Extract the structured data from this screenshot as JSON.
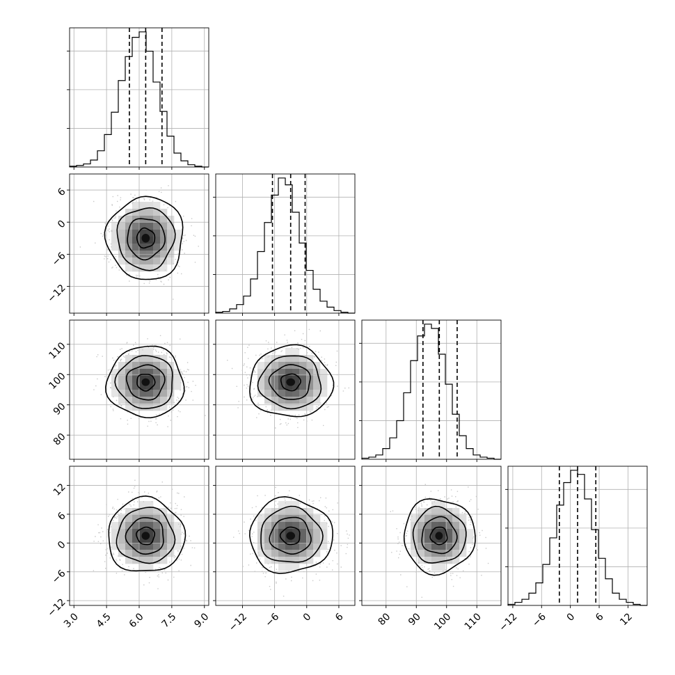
{
  "chart_data": {
    "type": "corner",
    "parameters": [
      {
        "mean": 6.3,
        "std": 0.75,
        "range": [
          2.8,
          9.2
        ],
        "quantiles": [
          5.55,
          6.3,
          7.05
        ],
        "ticks": [
          3.0,
          4.5,
          6.0,
          7.5,
          9.0
        ],
        "tick_labels": [
          "3.0",
          "4.5",
          "6.0",
          "7.5",
          "9.0"
        ],
        "hist_counts": [
          1,
          2,
          4,
          9,
          21,
          42,
          71,
          112,
          143,
          168,
          175,
          150,
          110,
          72,
          40,
          18,
          8,
          3,
          1,
          0
        ]
      },
      {
        "mean": -3.0,
        "std": 3.3,
        "range": [
          -17,
          9
        ],
        "quantiles": [
          -6.4,
          -3.0,
          -0.3
        ],
        "ticks": [
          -12,
          -6,
          0,
          6
        ],
        "tick_labels": [
          "−12",
          "−6",
          "0",
          "6"
        ],
        "hist_counts": [
          1,
          2,
          5,
          10,
          20,
          40,
          72,
          106,
          138,
          158,
          150,
          118,
          82,
          50,
          28,
          14,
          7,
          3,
          1,
          0
        ]
      },
      {
        "mean": 97.5,
        "std": 5.0,
        "range": [
          72,
          118
        ],
        "quantiles": [
          92.2,
          97.6,
          103.5
        ],
        "ticks": [
          80,
          90,
          100,
          110
        ],
        "tick_labels": [
          "80",
          "90",
          "100",
          "110"
        ],
        "hist_counts": [
          1,
          2,
          4,
          10,
          20,
          36,
          62,
          92,
          115,
          126,
          122,
          98,
          70,
          42,
          22,
          10,
          4,
          2,
          1,
          0
        ]
      },
      {
        "mean": 1.5,
        "std": 3.3,
        "range": [
          -13,
          16
        ],
        "quantiles": [
          -2.3,
          1.5,
          5.3
        ],
        "ticks": [
          -12,
          -6,
          0,
          6,
          12
        ],
        "tick_labels": [
          "−12",
          "−6",
          "0",
          "6",
          "12"
        ],
        "hist_counts": [
          1,
          3,
          6,
          12,
          22,
          40,
          66,
          98,
          120,
          132,
          128,
          104,
          74,
          46,
          26,
          12,
          6,
          3,
          1,
          0
        ]
      }
    ],
    "colors": {
      "line": "#000000",
      "grid": "#b0b0b0",
      "points": "#c8c8c8"
    }
  }
}
